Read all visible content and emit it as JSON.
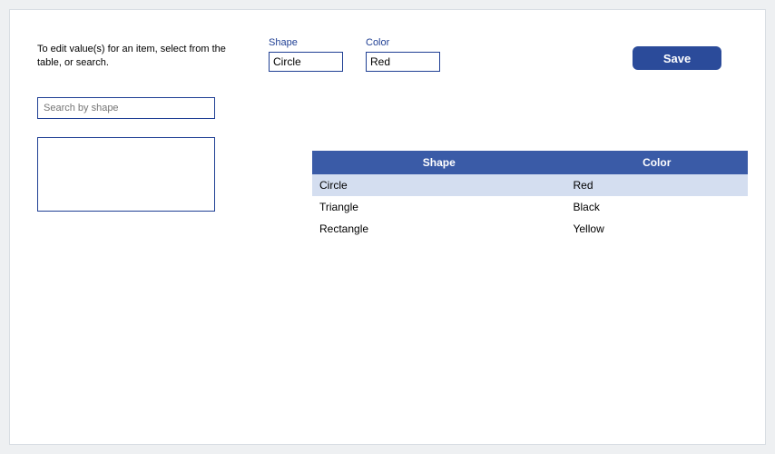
{
  "instructions": "To edit value(s) for an item, select from the table, or search.",
  "fields": {
    "shape": {
      "label": "Shape",
      "value": "Circle"
    },
    "color": {
      "label": "Color",
      "value": "Red"
    }
  },
  "save_label": "Save",
  "search": {
    "placeholder": "Search by shape"
  },
  "table": {
    "columns": [
      "Shape",
      "Color"
    ],
    "rows": [
      {
        "shape": "Circle",
        "color": "Red",
        "selected": true
      },
      {
        "shape": "Triangle",
        "color": "Black",
        "selected": false
      },
      {
        "shape": "Rectangle",
        "color": "Yellow",
        "selected": false
      }
    ]
  },
  "colors": {
    "accent": "#1f3f94",
    "header_bg": "#3a5ba7",
    "row_selected_bg": "#d4def0",
    "panel_border": "#d8dde3",
    "page_bg": "#eef0f2"
  }
}
